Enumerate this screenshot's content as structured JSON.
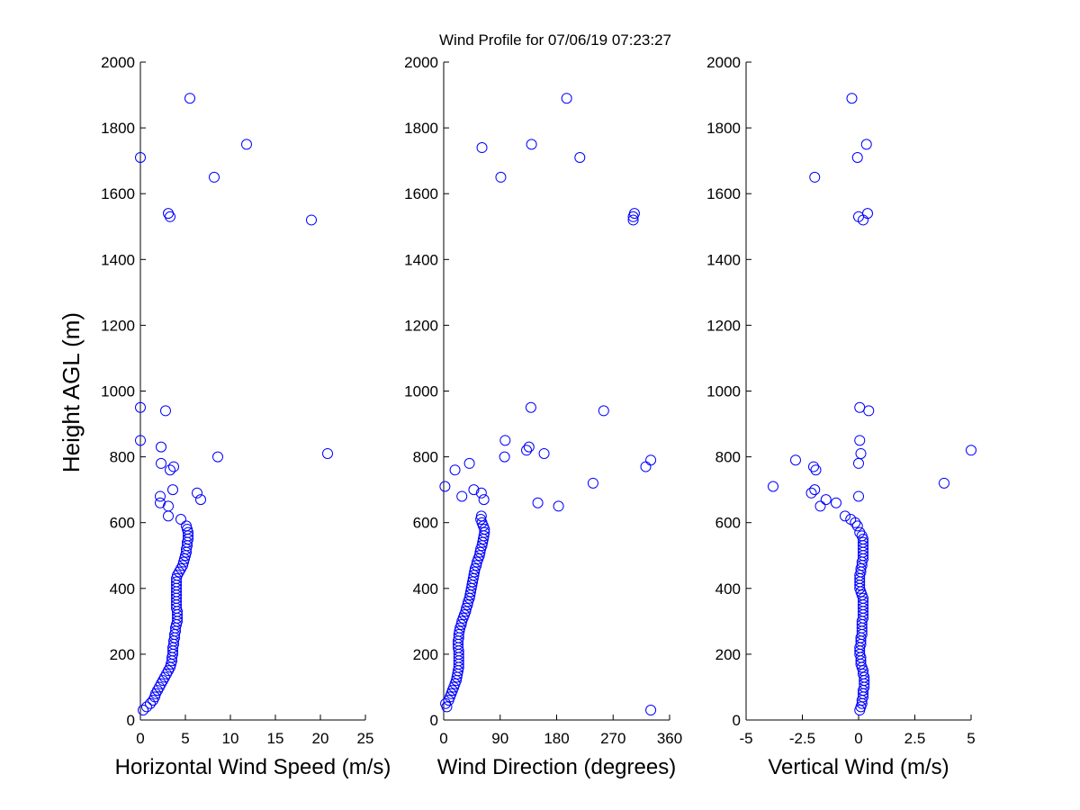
{
  "figure": {
    "title": "Wind Profile for  07/06/19 07:23:27",
    "ylabel": "Height AGL (m)",
    "marker_color": "#0000ff"
  },
  "chart_data": [
    {
      "type": "scatter",
      "xlabel": "Horizontal Wind Speed (m/s)",
      "ylabel": "Height AGL (m)",
      "xlim": [
        0,
        25
      ],
      "ylim": [
        0,
        2000
      ],
      "xticks": [
        0,
        5,
        10,
        15,
        20,
        25
      ],
      "xtick_labels": [
        "0",
        "5",
        "10",
        "15",
        "20",
        "25"
      ],
      "yticks": [
        0,
        200,
        400,
        600,
        800,
        1000,
        1200,
        1400,
        1600,
        1800,
        2000
      ],
      "ytick_labels": [
        "0",
        "200",
        "400",
        "600",
        "800",
        "1000",
        "1200",
        "1400",
        "1600",
        "1800",
        "2000"
      ],
      "points": [
        [
          0.3,
          30
        ],
        [
          0.7,
          40
        ],
        [
          1.1,
          50
        ],
        [
          1.4,
          60
        ],
        [
          1.6,
          70
        ],
        [
          1.7,
          80
        ],
        [
          1.9,
          90
        ],
        [
          2.1,
          100
        ],
        [
          2.3,
          110
        ],
        [
          2.5,
          120
        ],
        [
          2.7,
          130
        ],
        [
          2.9,
          140
        ],
        [
          3.1,
          150
        ],
        [
          3.3,
          160
        ],
        [
          3.4,
          170
        ],
        [
          3.5,
          180
        ],
        [
          3.5,
          190
        ],
        [
          3.6,
          200
        ],
        [
          3.6,
          210
        ],
        [
          3.6,
          220
        ],
        [
          3.7,
          230
        ],
        [
          3.7,
          240
        ],
        [
          3.8,
          250
        ],
        [
          3.8,
          260
        ],
        [
          3.9,
          270
        ],
        [
          3.9,
          280
        ],
        [
          4.0,
          290
        ],
        [
          4.1,
          300
        ],
        [
          4.1,
          310
        ],
        [
          4.1,
          320
        ],
        [
          4.1,
          330
        ],
        [
          4.0,
          340
        ],
        [
          4.0,
          350
        ],
        [
          4.0,
          360
        ],
        [
          4.0,
          370
        ],
        [
          4.0,
          380
        ],
        [
          4.0,
          390
        ],
        [
          4.0,
          400
        ],
        [
          4.0,
          410
        ],
        [
          4.0,
          420
        ],
        [
          4.0,
          430
        ],
        [
          4.1,
          440
        ],
        [
          4.3,
          450
        ],
        [
          4.5,
          460
        ],
        [
          4.7,
          470
        ],
        [
          4.8,
          480
        ],
        [
          4.9,
          490
        ],
        [
          5.0,
          500
        ],
        [
          5.1,
          510
        ],
        [
          5.1,
          520
        ],
        [
          5.2,
          530
        ],
        [
          5.2,
          540
        ],
        [
          5.3,
          550
        ],
        [
          5.3,
          560
        ],
        [
          5.3,
          570
        ],
        [
          5.2,
          580
        ],
        [
          5.1,
          590
        ],
        [
          4.5,
          610
        ],
        [
          3.1,
          620
        ],
        [
          3.1,
          650
        ],
        [
          2.2,
          660
        ],
        [
          2.2,
          680
        ],
        [
          6.3,
          690
        ],
        [
          3.6,
          700
        ],
        [
          6.7,
          670
        ],
        [
          2.3,
          780
        ],
        [
          3.3,
          760
        ],
        [
          3.7,
          770
        ],
        [
          8.6,
          800
        ],
        [
          20.8,
          810
        ],
        [
          2.3,
          830
        ],
        [
          0.0,
          850
        ],
        [
          2.8,
          940
        ],
        [
          0.0,
          950
        ],
        [
          19.0,
          1520
        ],
        [
          3.3,
          1530
        ],
        [
          3.1,
          1540
        ],
        [
          8.2,
          1650
        ],
        [
          0.0,
          1710
        ],
        [
          11.8,
          1750
        ],
        [
          5.5,
          1890
        ]
      ]
    },
    {
      "type": "scatter",
      "xlabel": "Wind Direction (degrees)",
      "ylabel": "",
      "xlim": [
        0,
        360
      ],
      "ylim": [
        0,
        2000
      ],
      "xticks": [
        0,
        90,
        180,
        270,
        360
      ],
      "xtick_labels": [
        "0",
        "90",
        "180",
        "270",
        "360"
      ],
      "yticks": [
        0,
        200,
        400,
        600,
        800,
        1000,
        1200,
        1400,
        1600,
        1800,
        2000
      ],
      "ytick_labels": [
        "0",
        "200",
        "400",
        "600",
        "800",
        "1000",
        "1200",
        "1400",
        "1600",
        "1800",
        "2000"
      ],
      "points": [
        [
          3,
          50
        ],
        [
          5,
          40
        ],
        [
          8,
          60
        ],
        [
          10,
          70
        ],
        [
          12,
          80
        ],
        [
          14,
          90
        ],
        [
          16,
          100
        ],
        [
          18,
          110
        ],
        [
          20,
          120
        ],
        [
          21,
          130
        ],
        [
          22,
          140
        ],
        [
          23,
          150
        ],
        [
          24,
          160
        ],
        [
          24,
          170
        ],
        [
          24,
          180
        ],
        [
          24,
          190
        ],
        [
          24,
          200
        ],
        [
          24,
          210
        ],
        [
          23,
          220
        ],
        [
          23,
          230
        ],
        [
          23,
          240
        ],
        [
          24,
          250
        ],
        [
          24,
          260
        ],
        [
          25,
          270
        ],
        [
          26,
          280
        ],
        [
          28,
          290
        ],
        [
          29,
          300
        ],
        [
          31,
          310
        ],
        [
          33,
          320
        ],
        [
          35,
          330
        ],
        [
          36,
          340
        ],
        [
          38,
          350
        ],
        [
          39,
          360
        ],
        [
          41,
          370
        ],
        [
          42,
          380
        ],
        [
          43,
          390
        ],
        [
          44,
          400
        ],
        [
          45,
          410
        ],
        [
          46,
          420
        ],
        [
          47,
          430
        ],
        [
          48,
          440
        ],
        [
          49,
          450
        ],
        [
          50,
          460
        ],
        [
          52,
          470
        ],
        [
          53,
          480
        ],
        [
          55,
          490
        ],
        [
          57,
          500
        ],
        [
          58,
          510
        ],
        [
          59,
          520
        ],
        [
          61,
          530
        ],
        [
          62,
          540
        ],
        [
          63,
          550
        ],
        [
          64,
          560
        ],
        [
          65,
          570
        ],
        [
          65,
          580
        ],
        [
          63,
          590
        ],
        [
          61,
          600
        ],
        [
          59,
          610
        ],
        [
          60,
          620
        ],
        [
          150,
          660
        ],
        [
          183,
          650
        ],
        [
          2,
          710
        ],
        [
          29,
          680
        ],
        [
          48,
          700
        ],
        [
          60,
          690
        ],
        [
          64,
          670
        ],
        [
          18,
          760
        ],
        [
          41,
          780
        ],
        [
          238,
          720
        ],
        [
          97,
          800
        ],
        [
          160,
          810
        ],
        [
          132,
          820
        ],
        [
          136,
          830
        ],
        [
          98,
          850
        ],
        [
          322,
          770
        ],
        [
          330,
          790
        ],
        [
          139,
          950
        ],
        [
          255,
          940
        ],
        [
          302,
          1520
        ],
        [
          302,
          1530
        ],
        [
          304,
          1540
        ],
        [
          91,
          1650
        ],
        [
          61,
          1740
        ],
        [
          140,
          1750
        ],
        [
          217,
          1710
        ],
        [
          196,
          1890
        ],
        [
          330,
          30
        ]
      ]
    },
    {
      "type": "scatter",
      "xlabel": "Vertical Wind (m/s)",
      "ylabel": "",
      "xlim": [
        -5,
        5
      ],
      "ylim": [
        0,
        2000
      ],
      "xticks": [
        -5,
        -2.5,
        0,
        2.5,
        5
      ],
      "xtick_labels": [
        "-5",
        "-2.5",
        "0",
        "2.5",
        "5"
      ],
      "yticks": [
        0,
        200,
        400,
        600,
        800,
        1000,
        1200,
        1400,
        1600,
        1800,
        2000
      ],
      "ytick_labels": [
        "0",
        "200",
        "400",
        "600",
        "800",
        "1000",
        "1200",
        "1400",
        "1600",
        "1800",
        "2000"
      ],
      "points": [
        [
          0.05,
          30
        ],
        [
          0.1,
          40
        ],
        [
          0.15,
          50
        ],
        [
          0.15,
          60
        ],
        [
          0.2,
          70
        ],
        [
          0.2,
          80
        ],
        [
          0.2,
          90
        ],
        [
          0.25,
          100
        ],
        [
          0.25,
          110
        ],
        [
          0.25,
          120
        ],
        [
          0.25,
          130
        ],
        [
          0.2,
          140
        ],
        [
          0.2,
          150
        ],
        [
          0.15,
          160
        ],
        [
          0.1,
          170
        ],
        [
          0.1,
          180
        ],
        [
          0.1,
          190
        ],
        [
          0.05,
          200
        ],
        [
          0.05,
          210
        ],
        [
          0.05,
          220
        ],
        [
          0.1,
          230
        ],
        [
          0.1,
          240
        ],
        [
          0.1,
          250
        ],
        [
          0.15,
          260
        ],
        [
          0.15,
          270
        ],
        [
          0.15,
          280
        ],
        [
          0.15,
          290
        ],
        [
          0.15,
          300
        ],
        [
          0.2,
          310
        ],
        [
          0.2,
          320
        ],
        [
          0.2,
          330
        ],
        [
          0.2,
          340
        ],
        [
          0.2,
          350
        ],
        [
          0.2,
          360
        ],
        [
          0.2,
          370
        ],
        [
          0.15,
          380
        ],
        [
          0.1,
          390
        ],
        [
          0.05,
          400
        ],
        [
          0.05,
          410
        ],
        [
          0.05,
          420
        ],
        [
          0.05,
          430
        ],
        [
          0.05,
          440
        ],
        [
          0.1,
          450
        ],
        [
          0.1,
          460
        ],
        [
          0.15,
          470
        ],
        [
          0.15,
          480
        ],
        [
          0.2,
          490
        ],
        [
          0.2,
          500
        ],
        [
          0.2,
          510
        ],
        [
          0.2,
          520
        ],
        [
          0.2,
          530
        ],
        [
          0.2,
          540
        ],
        [
          0.2,
          550
        ],
        [
          0.15,
          560
        ],
        [
          0.05,
          570
        ],
        [
          -0.05,
          590
        ],
        [
          -0.15,
          600
        ],
        [
          -0.35,
          610
        ],
        [
          -0.6,
          620
        ],
        [
          -1.7,
          650
        ],
        [
          -1.0,
          660
        ],
        [
          -1.45,
          670
        ],
        [
          -3.8,
          710
        ],
        [
          -2.1,
          690
        ],
        [
          -1.95,
          700
        ],
        [
          0.0,
          680
        ],
        [
          -2.8,
          790
        ],
        [
          -1.9,
          760
        ],
        [
          -2.0,
          770
        ],
        [
          3.8,
          720
        ],
        [
          0.0,
          780
        ],
        [
          0.1,
          810
        ],
        [
          5.0,
          820
        ],
        [
          0.05,
          850
        ],
        [
          0.05,
          950
        ],
        [
          0.45,
          940
        ],
        [
          0.2,
          1520
        ],
        [
          0.0,
          1530
        ],
        [
          0.4,
          1540
        ],
        [
          -1.95,
          1650
        ],
        [
          -0.05,
          1710
        ],
        [
          0.35,
          1750
        ],
        [
          -0.3,
          1890
        ]
      ]
    }
  ]
}
